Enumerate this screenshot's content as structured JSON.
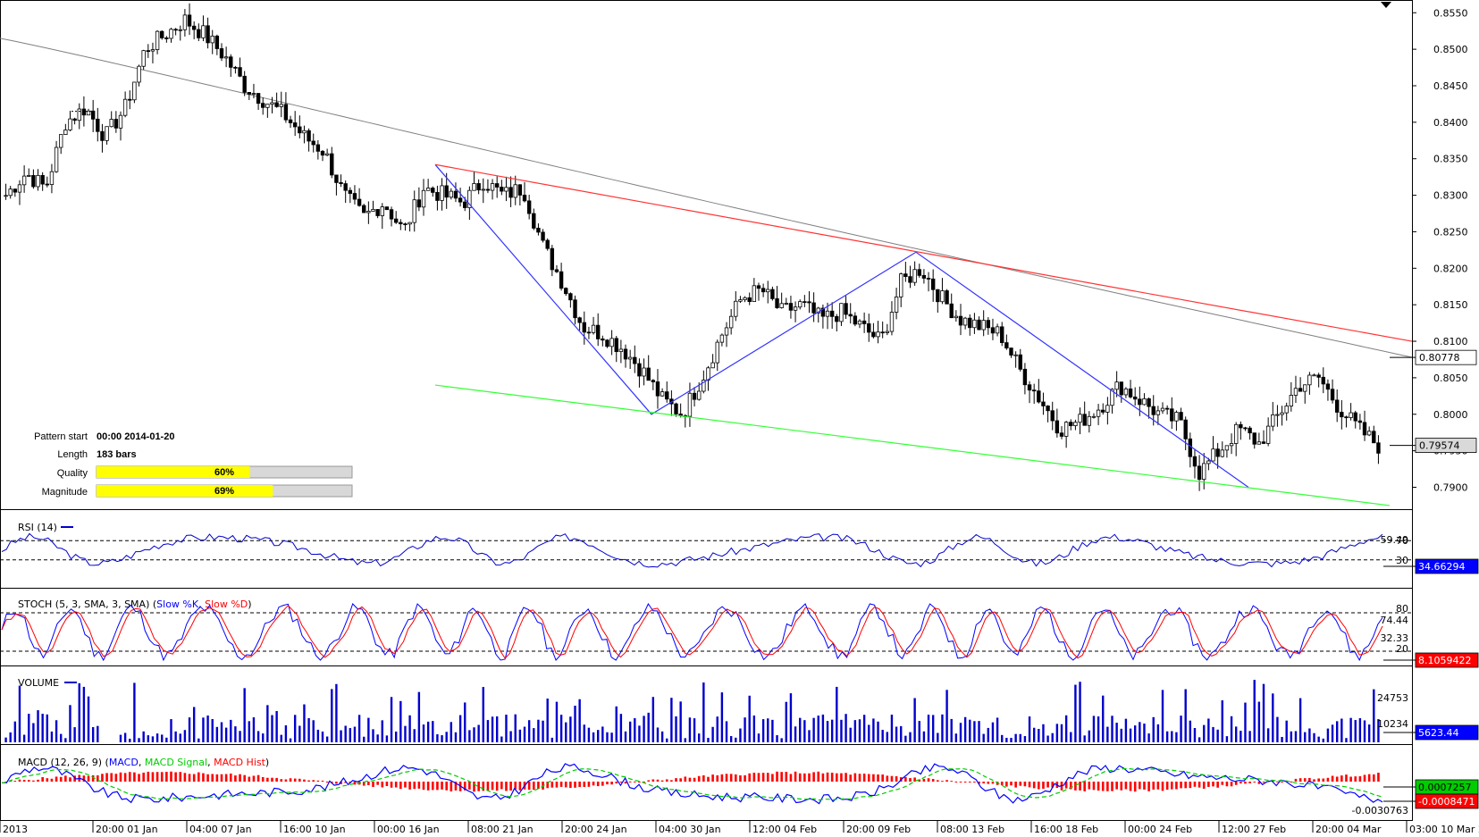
{
  "pattern_info": {
    "pattern_start_label": "Pattern start",
    "pattern_start_value": "00:00 2014-01-20",
    "length_label": "Length",
    "length_value": "183 bars",
    "quality_label": "Quality",
    "quality_value": "60%",
    "quality_fraction": 0.6,
    "magnitude_label": "Magnitude",
    "magnitude_value": "69%",
    "magnitude_fraction": 0.69
  },
  "price_axis": {
    "ticks": [
      "0.8550",
      "0.8500",
      "0.8450",
      "0.8400",
      "0.8350",
      "0.8300",
      "0.8250",
      "0.8200",
      "0.8150",
      "0.8100",
      "0.8050",
      "0.8000",
      "0.7950",
      "0.7900"
    ],
    "range": [
      0.787,
      0.8565
    ],
    "ma_label": "0.80778",
    "last_label": "0.79574"
  },
  "time_axis": {
    "labels": [
      "2013",
      "20:00 01 Jan",
      "04:00 07 Jan",
      "16:00 10 Jan",
      "00:00 16 Jan",
      "08:00 21 Jan",
      "20:00 24 Jan",
      "04:00 30 Jan",
      "12:00 04 Feb",
      "20:00 09 Feb",
      "08:00 13 Feb",
      "16:00 18 Feb",
      "00:00 24 Feb",
      "12:00 27 Feb",
      "20:00 04 Mar",
      "03:00 10 Mar 2014"
    ]
  },
  "rsi": {
    "title": "RSI (14)",
    "levels": [
      "70",
      "59.49",
      "30"
    ],
    "last": "34.66294"
  },
  "stoch": {
    "title_prefix": "STOCH (5, 3, SMA, 3, SMA) (",
    "series_k": "Slow %K",
    "sep": ", ",
    "series_d": "Slow %D",
    "title_suffix": ")",
    "levels": [
      "80",
      "74.44",
      "32.33",
      "20"
    ],
    "last": "8.1059422"
  },
  "volume": {
    "title": "VOLUME",
    "levels": [
      "24753",
      "10234"
    ],
    "last": "5623.44"
  },
  "macd": {
    "title_prefix": "MACD (12, 26, 9) (",
    "series_macd": "MACD",
    "sep1": ", ",
    "series_signal": "MACD Signal",
    "sep2": ", ",
    "series_hist": "MACD Hist",
    "title_suffix": ")",
    "label_low": "-0.0030763",
    "label_green": "0.0007257",
    "label_red": "-0.0008471"
  },
  "colors": {
    "candle": "#000000",
    "ma_line": "#808080",
    "pattern_zigzag": "#3333ff",
    "resistance": "#ff3333",
    "support": "#33ff33",
    "rsi_line": "#0000cc",
    "stoch_k": "#0000ff",
    "stoch_d": "#ff0000",
    "volume_bar": "#0000cc",
    "macd_line": "#0000ff",
    "macd_signal": "#00cc00",
    "macd_hist": "#ff0000",
    "quality_bar": "#ffff00",
    "label_blue": "#0000ff",
    "label_red": "#ff0000",
    "label_green": "#00cc00"
  },
  "chart_data": {
    "type": "candlestick",
    "symbol_pair_scale": "price",
    "ylim": [
      0.787,
      0.8565
    ],
    "candles_close_path": [
      0.83,
      0.833,
      0.831,
      0.84,
      0.842,
      0.838,
      0.842,
      0.85,
      0.852,
      0.854,
      0.852,
      0.849,
      0.845,
      0.843,
      0.841,
      0.838,
      0.836,
      0.83,
      0.827,
      0.829,
      0.825,
      0.831,
      0.83,
      0.829,
      0.832,
      0.83,
      0.831,
      0.823,
      0.818,
      0.812,
      0.811,
      0.809,
      0.806,
      0.802,
      0.8,
      0.805,
      0.811,
      0.816,
      0.817,
      0.814,
      0.815,
      0.813,
      0.814,
      0.812,
      0.81,
      0.818,
      0.82,
      0.816,
      0.813,
      0.812,
      0.811,
      0.806,
      0.802,
      0.798,
      0.799,
      0.801,
      0.804,
      0.802,
      0.8,
      0.799,
      0.792,
      0.795,
      0.798,
      0.796,
      0.8,
      0.804,
      0.805,
      0.801,
      0.798,
      0.7957
    ],
    "zigzag_pattern": [
      {
        "time": "00:00 16 Jan",
        "price": 0.8342
      },
      {
        "time": "04:00 30 Jan",
        "price": 0.8
      },
      {
        "time": "20:00 09 Feb",
        "price": 0.8222
      },
      {
        "time": "12:00 27 Feb",
        "price": 0.79
      }
    ],
    "resistance_line": [
      {
        "price_start": 0.8342
      },
      {
        "price_end": 0.81
      }
    ],
    "support_line": [
      {
        "price_start": 0.804
      },
      {
        "price_end": 0.7875
      }
    ]
  }
}
